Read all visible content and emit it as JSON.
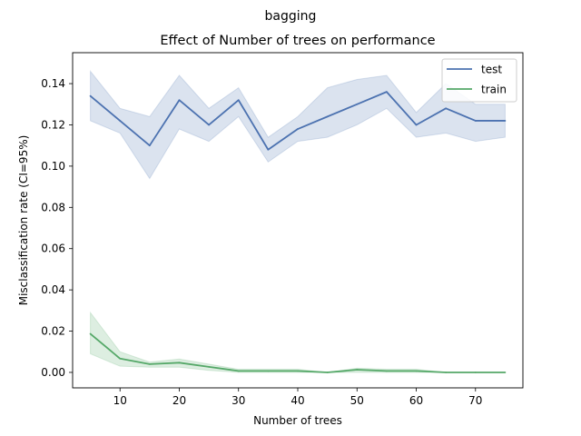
{
  "chart_data": {
    "type": "line",
    "suptitle": "bagging",
    "title": "Effect of Number of trees on performance",
    "xlabel": "Number of trees",
    "ylabel": "Misclassification rate (CI=95%)",
    "xlim": [
      2,
      78
    ],
    "ylim": [
      -0.0075,
      0.155
    ],
    "xticks": [
      10,
      20,
      30,
      40,
      50,
      60,
      70
    ],
    "yticks": [
      0.0,
      0.02,
      0.04,
      0.06,
      0.08,
      0.1,
      0.12,
      0.14
    ],
    "ytick_labels": [
      "0.00",
      "0.02",
      "0.04",
      "0.06",
      "0.08",
      "0.10",
      "0.12",
      "0.14"
    ],
    "legend_position": "upper right",
    "x": [
      5,
      10,
      15,
      20,
      25,
      30,
      35,
      40,
      45,
      50,
      55,
      60,
      65,
      70,
      75
    ],
    "series": [
      {
        "name": "test",
        "color": "#4c72b0",
        "values": [
          0.134,
          0.122,
          0.11,
          0.132,
          0.12,
          0.132,
          0.108,
          0.118,
          0.124,
          0.13,
          0.136,
          0.12,
          0.128,
          0.122,
          0.122
        ],
        "ci_low": [
          0.122,
          0.116,
          0.094,
          0.118,
          0.112,
          0.124,
          0.102,
          0.112,
          0.114,
          0.12,
          0.128,
          0.114,
          0.116,
          0.112,
          0.114
        ],
        "ci_high": [
          0.146,
          0.128,
          0.124,
          0.144,
          0.128,
          0.138,
          0.114,
          0.124,
          0.138,
          0.142,
          0.144,
          0.126,
          0.14,
          0.13,
          0.13
        ]
      },
      {
        "name": "train",
        "color": "#55a868",
        "values": [
          0.0187,
          0.0067,
          0.004,
          0.0047,
          0.0027,
          0.0007,
          0.0007,
          0.0007,
          0.0,
          0.0013,
          0.0007,
          0.0007,
          0.0,
          0.0,
          0.0
        ],
        "ci_low": [
          0.009,
          0.003,
          0.0025,
          0.0025,
          0.001,
          0.0,
          0.0,
          0.0,
          0.0,
          0.0,
          0.0,
          0.0,
          0.0,
          0.0,
          0.0
        ],
        "ci_high": [
          0.029,
          0.01,
          0.005,
          0.0065,
          0.004,
          0.0015,
          0.0015,
          0.0015,
          0.0,
          0.002,
          0.0015,
          0.0015,
          0.0,
          0.0,
          0.0
        ]
      }
    ]
  }
}
